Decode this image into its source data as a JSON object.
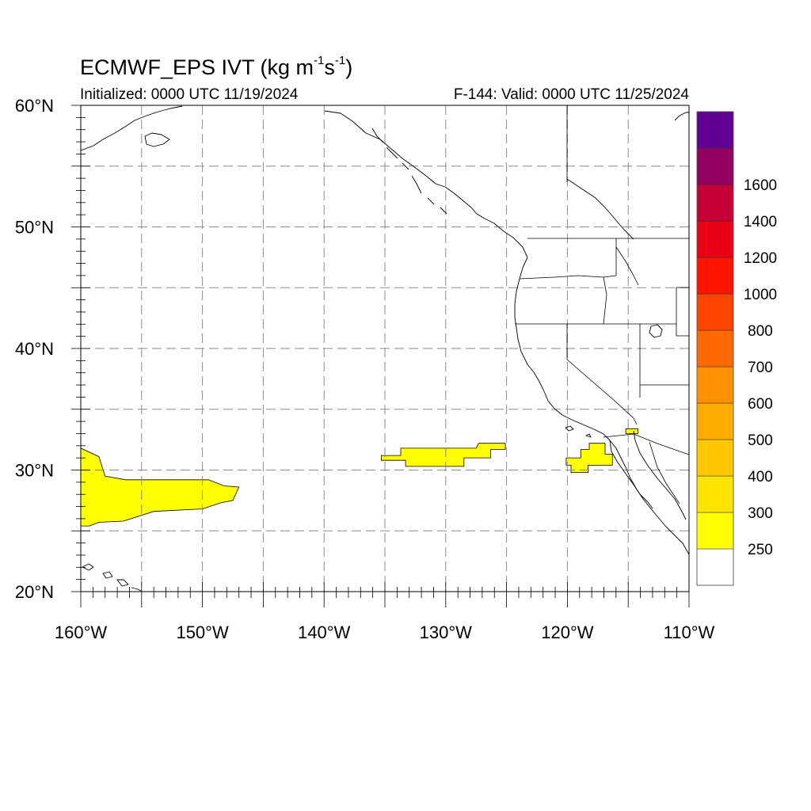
{
  "title": {
    "prefix": "ECMWF_EPS IVT (kg m",
    "exp1": "-1",
    "mid": "s",
    "exp2": "-1",
    "suffix": ")"
  },
  "subtitle_left": "Initialized: 0000 UTC 11/19/2024",
  "subtitle_right": "F-144: Valid: 0000 UTC 11/25/2024",
  "map": {
    "projection": "cylindrical equidistant",
    "lon_range": [
      -160,
      -110
    ],
    "lat_range": [
      20,
      60
    ],
    "grid": "dashed every 5 degrees",
    "lat_labels": [
      {
        "lat": 60,
        "text": "60°N"
      },
      {
        "lat": 50,
        "text": "50°N"
      },
      {
        "lat": 40,
        "text": "40°N"
      },
      {
        "lat": 30,
        "text": "30°N"
      },
      {
        "lat": 20,
        "text": "20°N"
      }
    ],
    "lon_labels": [
      {
        "lon": -160,
        "text": "160°W"
      },
      {
        "lon": -150,
        "text": "150°W"
      },
      {
        "lon": -140,
        "text": "140°W"
      },
      {
        "lon": -130,
        "text": "130°W"
      },
      {
        "lon": -120,
        "text": "120°W"
      },
      {
        "lon": -110,
        "text": "110°W"
      }
    ],
    "ivt_regions": [
      {
        "name": "subtropical-central-pacific",
        "category": "250-300",
        "color": "#ffff00",
        "polygon": [
          [
            -160,
            31.8
          ],
          [
            -158.5,
            31.1
          ],
          [
            -158,
            29.5
          ],
          [
            -156.3,
            29.2
          ],
          [
            -149.5,
            29.2
          ],
          [
            -148.2,
            28.7
          ],
          [
            -147,
            28.6
          ],
          [
            -147.5,
            27.5
          ],
          [
            -148.5,
            27.3
          ],
          [
            -150,
            26.8
          ],
          [
            -154,
            26.6
          ],
          [
            -156.5,
            25.8
          ],
          [
            -158.5,
            25.7
          ],
          [
            -159.3,
            25.4
          ],
          [
            -160,
            25.4
          ]
        ]
      },
      {
        "name": "mid-pacific-band",
        "category": "250-300",
        "color": "#ffff00",
        "polygon": [
          [
            -135.3,
            31.2
          ],
          [
            -133.7,
            31.2
          ],
          [
            -133.7,
            31.8
          ],
          [
            -127.5,
            31.8
          ],
          [
            -127.3,
            32.2
          ],
          [
            -125.1,
            32.2
          ],
          [
            -125.1,
            31.7
          ],
          [
            -126.3,
            31.7
          ],
          [
            -126.3,
            31.0
          ],
          [
            -128.5,
            31.0
          ],
          [
            -128.5,
            30.3
          ],
          [
            -133.3,
            30.3
          ],
          [
            -133.3,
            30.8
          ],
          [
            -135.3,
            30.8
          ]
        ]
      },
      {
        "name": "baja-offshore",
        "category": "250-300",
        "color": "#ffff00",
        "polygon": [
          [
            -120.1,
            31.0
          ],
          [
            -118.9,
            31.0
          ],
          [
            -118.9,
            31.7
          ],
          [
            -118.2,
            31.7
          ],
          [
            -118.2,
            32.2
          ],
          [
            -116.9,
            32.2
          ],
          [
            -116.9,
            31.3
          ],
          [
            -116.3,
            31.3
          ],
          [
            -116.3,
            30.4
          ],
          [
            -118.3,
            30.4
          ],
          [
            -118.3,
            29.8
          ],
          [
            -119.7,
            29.8
          ],
          [
            -119.7,
            30.4
          ],
          [
            -120.1,
            30.4
          ]
        ]
      },
      {
        "name": "gulf-of-california-north",
        "category": "250-300",
        "color": "#ffff00",
        "polygon": [
          [
            -115.2,
            33.4
          ],
          [
            -114.2,
            33.4
          ],
          [
            -114.2,
            33.0
          ],
          [
            -115.2,
            33.0
          ]
        ]
      }
    ]
  },
  "colorbar": {
    "colors": [
      "#ffffff",
      "#ffff00",
      "#ffe400",
      "#ffc800",
      "#ffab00",
      "#ff9000",
      "#ff6a00",
      "#ff4400",
      "#ff1400",
      "#ea0014",
      "#c40036",
      "#93005f",
      "#610095"
    ],
    "labels": [
      "250",
      "300",
      "400",
      "500",
      "600",
      "700",
      "800",
      "1000",
      "1200",
      "1400",
      "1600"
    ]
  }
}
